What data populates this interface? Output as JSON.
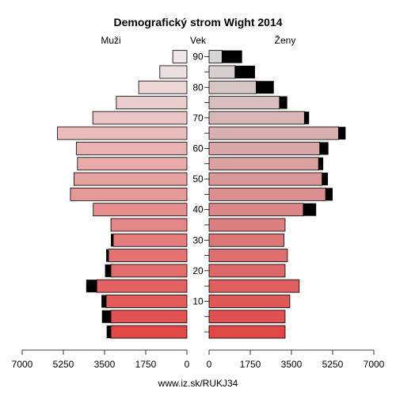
{
  "chart_data": {
    "type": "bar",
    "orientation": "horizontal-pyramid",
    "title": "Demografický strom Wight 2014",
    "left_label": "Muži",
    "center_label": "Vek",
    "right_label": "Ženy",
    "source": "www.iz.sk/RUKJ34",
    "x_ticks_left": [
      "7000",
      "5250",
      "3500",
      "1750",
      "0"
    ],
    "x_ticks_right": [
      "0",
      "1750",
      "3500",
      "5250",
      "7000"
    ],
    "x_tick_values": [
      7000,
      5250,
      3500,
      1750,
      0
    ],
    "xlim": [
      0,
      7000
    ],
    "age_labels": [
      "90",
      "80",
      "70",
      "60",
      "50",
      "40",
      "30",
      "20",
      "10"
    ],
    "age_label_groups": [
      18,
      16,
      14,
      12,
      10,
      8,
      6,
      4,
      2
    ],
    "age_groups": [
      "0-4",
      "5-9",
      "10-14",
      "15-19",
      "20-24",
      "25-29",
      "30-34",
      "35-39",
      "40-44",
      "45-49",
      "50-54",
      "55-59",
      "60-64",
      "65-69",
      "70-74",
      "75-79",
      "80-84",
      "85-89",
      "90+"
    ],
    "series": [
      {
        "name": "Muži",
        "base": [
          3230,
          3230,
          3430,
          3830,
          3230,
          3330,
          3130,
          3230,
          3980,
          4950,
          4800,
          4650,
          4700,
          5500,
          4000,
          3000,
          2050,
          1150,
          600
        ],
        "excess": [
          180,
          380,
          200,
          450,
          250,
          100,
          100,
          0,
          0,
          0,
          0,
          0,
          0,
          0,
          0,
          0,
          0,
          0,
          0
        ]
      },
      {
        "name": "Ženy",
        "base": [
          3230,
          3230,
          3430,
          3830,
          3230,
          3330,
          3180,
          3230,
          4000,
          4950,
          4800,
          4650,
          4700,
          5500,
          4050,
          2990,
          2000,
          1100,
          550
        ],
        "excess": [
          0,
          0,
          0,
          0,
          0,
          0,
          0,
          0,
          550,
          300,
          250,
          200,
          370,
          300,
          200,
          330,
          750,
          850,
          850
        ]
      }
    ]
  }
}
